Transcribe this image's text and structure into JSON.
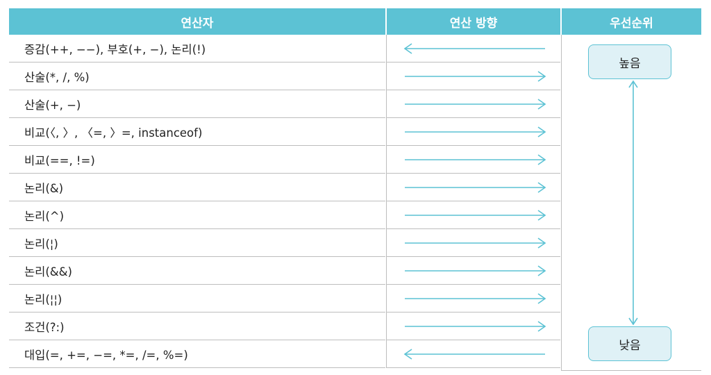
{
  "headers": {
    "operator": "연산자",
    "direction": "연산 방향",
    "priority": "우선순위"
  },
  "rows": [
    {
      "operator": "증감(++, −−), 부호(+, −), 논리(!)",
      "direction": "left"
    },
    {
      "operator": "산술(*, /, %)",
      "direction": "right"
    },
    {
      "operator": "산술(+, −)",
      "direction": "right"
    },
    {
      "operator": "비교(〈, 〉, 〈=, 〉=, instanceof)",
      "direction": "right"
    },
    {
      "operator": "비교(==, !=)",
      "direction": "right"
    },
    {
      "operator": "논리(&)",
      "direction": "right"
    },
    {
      "operator": "논리(^)",
      "direction": "right"
    },
    {
      "operator": "논리(¦)",
      "direction": "right"
    },
    {
      "operator": "논리(&&)",
      "direction": "right"
    },
    {
      "operator": "논리(¦¦)",
      "direction": "right"
    },
    {
      "operator": "조건(?:)",
      "direction": "right"
    },
    {
      "operator": "대입(=, +=, −=, *=, /=, %=)",
      "direction": "left"
    }
  ],
  "priority": {
    "high": "높음",
    "low": "낮음"
  },
  "colors": {
    "accent": "#5cc2d4",
    "box_fill": "#dff1f6"
  }
}
